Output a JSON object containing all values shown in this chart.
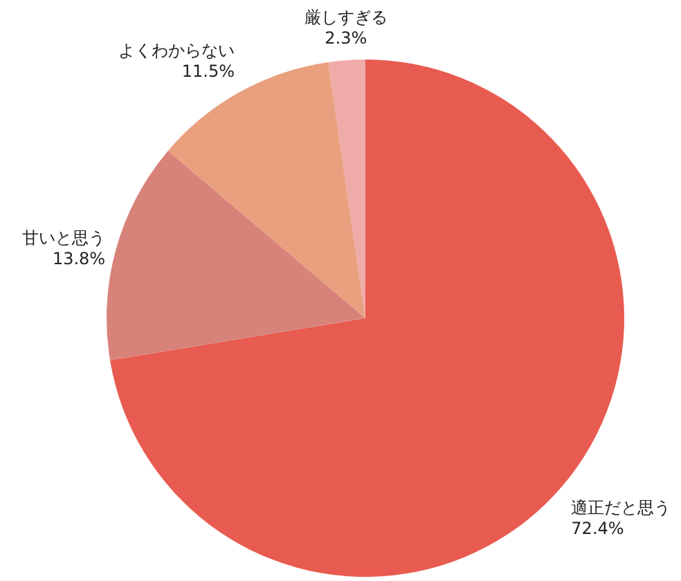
{
  "chart_data": {
    "type": "pie",
    "categories": [
      "適正だと思う",
      "甘いと思う",
      "よくわからない",
      "厳しすぎる"
    ],
    "values": [
      72.4,
      13.8,
      11.5,
      2.3
    ],
    "colors": [
      "#e85b50",
      "#d8837a",
      "#e9a07f",
      "#efaba8"
    ],
    "value_labels": [
      "72.4%",
      "13.8%",
      "11.5%",
      "2.3%"
    ]
  }
}
